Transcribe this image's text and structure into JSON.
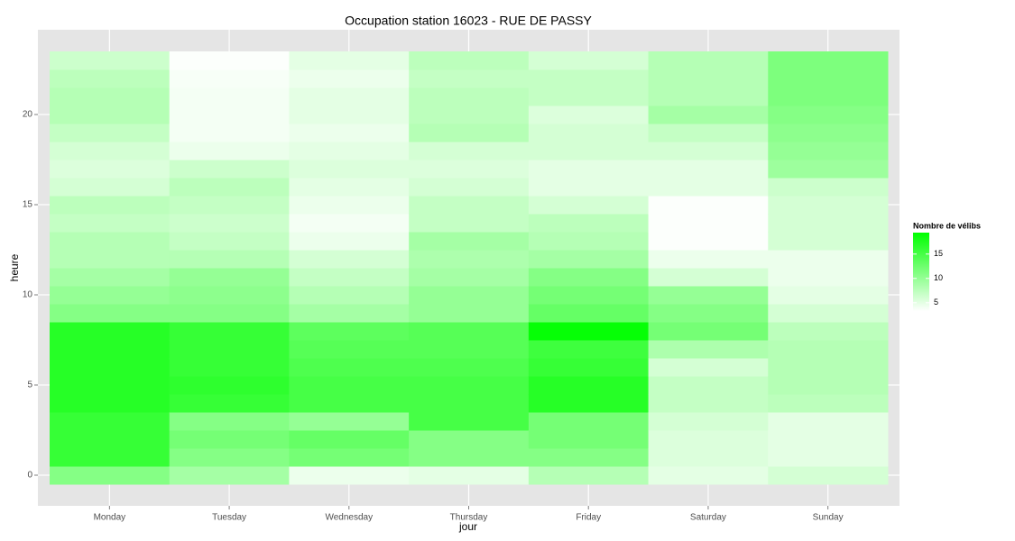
{
  "chart_data": {
    "type": "heatmap",
    "title": "Occupation station 16023 - RUE DE PASSY",
    "x_label": "jour",
    "y_label": "heure",
    "categories": [
      "Monday",
      "Tuesday",
      "Wednesday",
      "Thursday",
      "Friday",
      "Saturday",
      "Sunday"
    ],
    "y": [
      0,
      1,
      2,
      3,
      4,
      5,
      6,
      7,
      8,
      9,
      10,
      11,
      12,
      13,
      14,
      15,
      16,
      17,
      18,
      19,
      20,
      21,
      22,
      23
    ],
    "values": [
      [
        11,
        16,
        16,
        16,
        17,
        17,
        17,
        17,
        17,
        11,
        10,
        9,
        8,
        8,
        7,
        7.5,
        6,
        5.5,
        6,
        7,
        8,
        8,
        7.5,
        6.5
      ],
      [
        9,
        11,
        12,
        11,
        16,
        16.5,
        16,
        16,
        16,
        11,
        10.5,
        10,
        8,
        7,
        6.5,
        7,
        7.5,
        6.5,
        4.5,
        4,
        4,
        4,
        3.8,
        3.5
      ],
      [
        4.5,
        12,
        13,
        10,
        15,
        15,
        14.5,
        14,
        13.5,
        9,
        8,
        7,
        6,
        4.5,
        4,
        4.5,
        5,
        5.5,
        5,
        4.5,
        5,
        5,
        4.5,
        5
      ],
      [
        5,
        11,
        11,
        15,
        15,
        15,
        14.5,
        14,
        14,
        10,
        10,
        9,
        8.5,
        9,
        7,
        7,
        6,
        5.5,
        6,
        8,
        7.5,
        7.5,
        7,
        7.5
      ],
      [
        8,
        11,
        12,
        12,
        17,
        17,
        16,
        15.5,
        19,
        13,
        12,
        11,
        9,
        8,
        7.5,
        6,
        5,
        5,
        6,
        6,
        5.5,
        7,
        7,
        6
      ],
      [
        5,
        5.5,
        5.5,
        6,
        7,
        7,
        6,
        8.5,
        12,
        11,
        10,
        6,
        4.5,
        3.5,
        3.5,
        3.5,
        5,
        5,
        6,
        7,
        9,
        8,
        8,
        8
      ],
      [
        6,
        5,
        5,
        5,
        7.5,
        8,
        8,
        8,
        7.5,
        6,
        5,
        4.5,
        4.5,
        6,
        6,
        6,
        6.5,
        9.5,
        10,
        10.5,
        11,
        11.5,
        11.5,
        11.5
      ]
    ],
    "ylim": [
      -0.5,
      23.5
    ],
    "yticks": [
      0,
      5,
      10,
      15,
      20
    ],
    "grid": true,
    "colorscale": {
      "title": "Nombre de vélibs",
      "low": "#ffffff",
      "high": "#00ff00",
      "limits": [
        3.3,
        19.4
      ],
      "ticks": [
        5,
        10,
        15
      ]
    }
  }
}
